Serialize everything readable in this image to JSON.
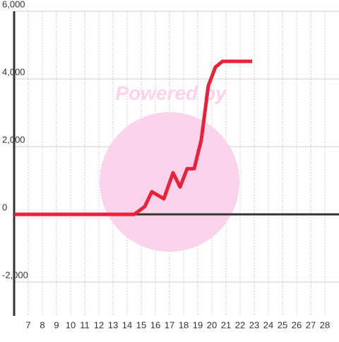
{
  "chart_data": {
    "type": "line",
    "x": [
      6,
      14.5,
      15.25,
      15.75,
      16.6,
      17.25,
      17.75,
      18.25,
      18.75,
      19.25,
      19.75,
      20.25,
      20.75,
      22.85
    ],
    "series": [
      {
        "color": "#e8223a",
        "values": [
          0,
          0,
          230,
          670,
          460,
          1230,
          810,
          1350,
          1350,
          2200,
          3800,
          4350,
          4520,
          4520
        ]
      }
    ],
    "xlim": [
      6,
      29
    ],
    "ylim": [
      -3000,
      6000
    ],
    "xticks": [
      7,
      8,
      9,
      10,
      11,
      12,
      13,
      14,
      15,
      16,
      17,
      18,
      19,
      20,
      21,
      22,
      23,
      24,
      25,
      26,
      27,
      28
    ],
    "yticks": [
      {
        "value": -2000,
        "label": "-2,000"
      },
      0,
      {
        "value": 2000,
        "label": "2,000"
      },
      {
        "value": 4000,
        "label": "4,000"
      },
      {
        "value": 6000,
        "label": "6,000"
      }
    ],
    "grid": true,
    "watermark": "Powered by"
  }
}
